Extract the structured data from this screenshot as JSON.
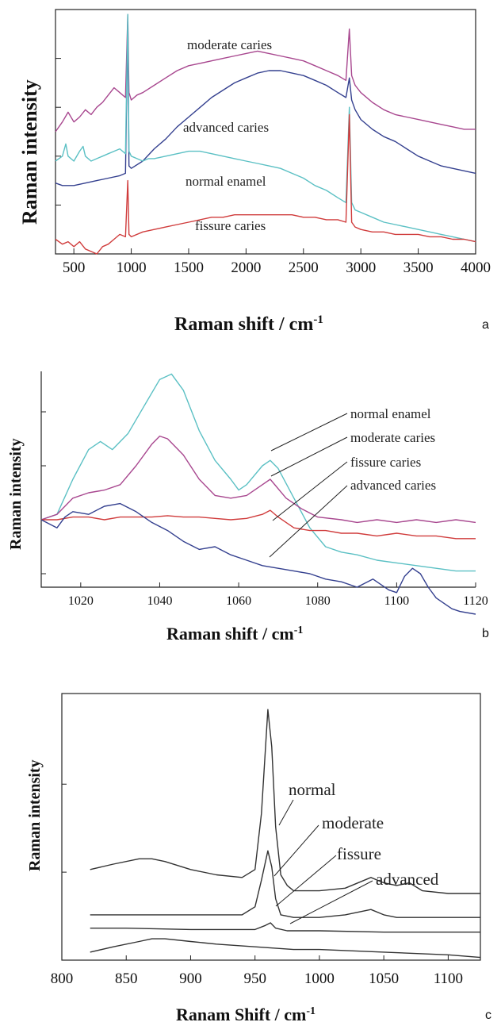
{
  "chart_data": [
    {
      "type": "line",
      "panel": "a",
      "xlabel": "Raman shift / cm",
      "xlabel_sup": "-1",
      "ylabel": "Raman intensity",
      "xlim": [
        340,
        4000
      ],
      "ylim": [
        0,
        100
      ],
      "x_ticks": [
        500,
        1000,
        1500,
        2000,
        2500,
        3000,
        3500,
        4000
      ],
      "y_ticks": [
        0,
        20,
        40,
        60,
        80,
        100
      ],
      "curve_labels": [
        "moderate caries",
        "advanced caries",
        "normal enamel",
        "fissure caries"
      ],
      "series": [
        {
          "name": "moderate caries",
          "color": "#a8478f",
          "x": [
            340,
            400,
            450,
            500,
            550,
            600,
            650,
            700,
            750,
            800,
            850,
            900,
            950,
            970,
            980,
            1000,
            1050,
            1100,
            1200,
            1300,
            1400,
            1500,
            1600,
            1700,
            1800,
            1900,
            2000,
            2100,
            2200,
            2300,
            2400,
            2500,
            2600,
            2700,
            2800,
            2870,
            2900,
            2920,
            2950,
            3000,
            3100,
            3200,
            3300,
            3400,
            3500,
            3600,
            3700,
            3800,
            3900,
            4000
          ],
          "y": [
            50,
            54,
            58,
            54,
            56,
            59,
            57,
            60,
            62,
            65,
            68,
            66,
            64,
            98,
            66,
            63,
            65,
            66,
            69,
            72,
            75,
            77,
            78,
            79,
            80,
            81,
            82,
            83,
            82,
            81,
            80,
            79,
            77,
            75,
            73,
            71,
            92,
            73,
            69,
            66,
            62,
            59,
            57,
            56,
            55,
            54,
            53,
            52,
            51,
            51
          ]
        },
        {
          "name": "advanced caries",
          "color": "#34408f",
          "x": [
            340,
            400,
            500,
            600,
            700,
            800,
            900,
            950,
            970,
            980,
            1000,
            1100,
            1200,
            1300,
            1400,
            1500,
            1600,
            1700,
            1800,
            1900,
            2000,
            2100,
            2200,
            2300,
            2400,
            2500,
            2600,
            2700,
            2800,
            2870,
            2900,
            2920,
            2950,
            3000,
            3100,
            3200,
            3300,
            3400,
            3500,
            3600,
            3700,
            3800,
            3900,
            4000
          ],
          "y": [
            29,
            28,
            28,
            29,
            30,
            31,
            32,
            33,
            95,
            36,
            35,
            38,
            43,
            47,
            52,
            56,
            60,
            64,
            67,
            70,
            72,
            74,
            75,
            75,
            74,
            73,
            71,
            69,
            66,
            64,
            72,
            63,
            59,
            55,
            51,
            48,
            46,
            43,
            40,
            38,
            36,
            35,
            34,
            33
          ]
        },
        {
          "name": "normal enamel",
          "color": "#5bc0c4",
          "x": [
            340,
            400,
            430,
            450,
            500,
            550,
            580,
            600,
            650,
            700,
            750,
            800,
            850,
            900,
            950,
            970,
            980,
            1000,
            1050,
            1100,
            1150,
            1200,
            1300,
            1400,
            1500,
            1600,
            1700,
            1800,
            1900,
            2000,
            2100,
            2200,
            2300,
            2400,
            2500,
            2600,
            2700,
            2800,
            2870,
            2900,
            2920,
            2950,
            3000,
            3100,
            3200,
            3300,
            3400,
            3500,
            3600,
            3700,
            3800,
            3900,
            4000
          ],
          "y": [
            38,
            40,
            45,
            40,
            38,
            42,
            44,
            40,
            38,
            39,
            40,
            41,
            42,
            43,
            41,
            98,
            42,
            40,
            39,
            38,
            39,
            39,
            40,
            41,
            42,
            42,
            41,
            40,
            39,
            38,
            37,
            36,
            35,
            33,
            31,
            28,
            26,
            23,
            21,
            60,
            21,
            18,
            17,
            15,
            13,
            12,
            11,
            10,
            9,
            8,
            7,
            6,
            5
          ]
        },
        {
          "name": "fissure caries",
          "color": "#d03c3c",
          "x": [
            340,
            400,
            450,
            500,
            550,
            600,
            650,
            700,
            750,
            800,
            850,
            900,
            950,
            970,
            980,
            1000,
            1100,
            1200,
            1300,
            1400,
            1500,
            1600,
            1700,
            1800,
            1900,
            2000,
            2100,
            2200,
            2300,
            2400,
            2500,
            2600,
            2700,
            2800,
            2870,
            2900,
            2920,
            2950,
            3000,
            3100,
            3200,
            3300,
            3400,
            3500,
            3600,
            3700,
            3800,
            3900,
            4000
          ],
          "y": [
            6,
            4,
            5,
            3,
            5,
            2,
            1,
            0,
            3,
            4,
            6,
            8,
            7,
            30,
            8,
            7,
            9,
            10,
            11,
            12,
            13,
            14,
            15,
            15,
            16,
            16,
            16,
            16,
            16,
            16,
            15,
            15,
            14,
            14,
            13,
            57,
            13,
            11,
            10,
            9,
            9,
            8,
            8,
            8,
            7,
            7,
            6,
            6,
            5
          ]
        }
      ]
    },
    {
      "type": "line",
      "panel": "b",
      "xlabel": "Raman shift / cm",
      "xlabel_sup": "-1",
      "ylabel": "Raman intensity",
      "xlim": [
        1010,
        1120
      ],
      "ylim": [
        -2.5,
        5.5
      ],
      "x_ticks": [
        1020,
        1040,
        1060,
        1080,
        1100,
        1120
      ],
      "y_ticks": [
        -2,
        0,
        2,
        4
      ],
      "curve_labels": [
        "normal enamel",
        "moderate caries",
        "fissure caries",
        "advanced caries"
      ],
      "series": [
        {
          "name": "normal enamel",
          "color": "#5bc0c4",
          "x": [
            1010,
            1014,
            1018,
            1022,
            1025,
            1028,
            1032,
            1036,
            1040,
            1043,
            1046,
            1050,
            1054,
            1058,
            1060,
            1062,
            1066,
            1068,
            1070,
            1074,
            1078,
            1082,
            1086,
            1090,
            1095,
            1100,
            1105,
            1110,
            1115,
            1120
          ],
          "y": [
            0,
            0.2,
            1.5,
            2.6,
            2.9,
            2.6,
            3.2,
            4.2,
            5.2,
            5.4,
            4.8,
            3.3,
            2.2,
            1.5,
            1.1,
            1.3,
            2.0,
            2.2,
            1.9,
            0.8,
            -0.3,
            -1.0,
            -1.2,
            -1.3,
            -1.5,
            -1.6,
            -1.7,
            -1.8,
            -1.9,
            -1.9
          ]
        },
        {
          "name": "moderate caries",
          "color": "#a8478f",
          "x": [
            1010,
            1014,
            1018,
            1022,
            1026,
            1030,
            1034,
            1038,
            1040,
            1042,
            1046,
            1050,
            1054,
            1058,
            1062,
            1066,
            1068,
            1072,
            1076,
            1080,
            1086,
            1090,
            1095,
            1100,
            1105,
            1110,
            1115,
            1120
          ],
          "y": [
            0,
            0.2,
            0.8,
            1.0,
            1.1,
            1.3,
            2.0,
            2.8,
            3.1,
            3.0,
            2.4,
            1.5,
            0.9,
            0.8,
            0.9,
            1.3,
            1.5,
            0.8,
            0.4,
            0.1,
            0,
            -0.1,
            0,
            -0.1,
            0,
            -0.1,
            0,
            -0.1
          ]
        },
        {
          "name": "fissure caries",
          "color": "#d03c3c",
          "x": [
            1010,
            1014,
            1018,
            1022,
            1026,
            1030,
            1034,
            1038,
            1042,
            1046,
            1050,
            1054,
            1058,
            1062,
            1066,
            1068,
            1070,
            1074,
            1078,
            1082,
            1086,
            1090,
            1095,
            1100,
            1105,
            1110,
            1115,
            1120
          ],
          "y": [
            0,
            0,
            0.1,
            0.1,
            0,
            0.1,
            0.1,
            0.1,
            0.15,
            0.1,
            0.1,
            0.05,
            0,
            0.05,
            0.2,
            0.35,
            0.1,
            -0.3,
            -0.4,
            -0.4,
            -0.5,
            -0.5,
            -0.6,
            -0.5,
            -0.6,
            -0.6,
            -0.7,
            -0.7
          ]
        },
        {
          "name": "advanced caries",
          "color": "#34408f",
          "x": [
            1010,
            1014,
            1016,
            1018,
            1022,
            1026,
            1030,
            1034,
            1038,
            1042,
            1046,
            1050,
            1054,
            1058,
            1062,
            1066,
            1070,
            1074,
            1078,
            1082,
            1086,
            1090,
            1094,
            1098,
            1100,
            1102,
            1104,
            1106,
            1108,
            1110,
            1114,
            1116,
            1120
          ],
          "y": [
            0,
            -0.3,
            0.1,
            0.3,
            0.2,
            0.5,
            0.6,
            0.3,
            -0.1,
            -0.4,
            -0.8,
            -1.1,
            -1.0,
            -1.3,
            -1.5,
            -1.7,
            -1.8,
            -1.9,
            -2.0,
            -2.2,
            -2.3,
            -2.5,
            -2.2,
            -2.6,
            -2.7,
            -2.1,
            -1.8,
            -2.0,
            -2.5,
            -2.9,
            -3.3,
            -3.4,
            -3.5
          ]
        }
      ]
    },
    {
      "type": "line",
      "panel": "c",
      "xlabel": "Ranam Shift / cm",
      "xlabel_sup": "-1",
      "ylabel": "Raman intensity",
      "xlim": [
        800,
        1125
      ],
      "ylim": [
        0,
        100
      ],
      "x_ticks": [
        800,
        850,
        900,
        950,
        1000,
        1050,
        1100
      ],
      "y_ticks": [
        0,
        33,
        66,
        100
      ],
      "curve_labels": [
        "normal",
        "moderate",
        "fissure",
        "advanced"
      ],
      "series": [
        {
          "name": "normal",
          "color": "#333333",
          "x": [
            822,
            840,
            860,
            870,
            880,
            900,
            920,
            940,
            950,
            955,
            960,
            963,
            966,
            970,
            975,
            980,
            1000,
            1020,
            1040,
            1050,
            1060,
            1070,
            1080,
            1100,
            1125
          ],
          "y": [
            34,
            36,
            38,
            38,
            37,
            34,
            32,
            31,
            34,
            55,
            94,
            80,
            50,
            32,
            28,
            26,
            26,
            27,
            31,
            29,
            28,
            29,
            26,
            25,
            25
          ]
        },
        {
          "name": "moderate",
          "color": "#333333",
          "x": [
            822,
            850,
            900,
            940,
            950,
            955,
            960,
            963,
            966,
            970,
            980,
            1000,
            1020,
            1040,
            1050,
            1060,
            1080,
            1100,
            1125
          ],
          "y": [
            17,
            17,
            17,
            17,
            20,
            30,
            41,
            35,
            23,
            17,
            16,
            16,
            17,
            19,
            17,
            16,
            16,
            16,
            16
          ]
        },
        {
          "name": "fissure",
          "color": "#333333",
          "x": [
            822,
            850,
            900,
            950,
            958,
            962,
            966,
            975,
            1000,
            1050,
            1100,
            1125
          ],
          "y": [
            12,
            12,
            11.5,
            11.5,
            13,
            14,
            12,
            11,
            11,
            10.5,
            10.5,
            10.5
          ]
        },
        {
          "name": "advanced",
          "color": "#333333",
          "x": [
            822,
            840,
            860,
            870,
            880,
            900,
            920,
            950,
            980,
            1000,
            1050,
            1100,
            1125
          ],
          "y": [
            3,
            5,
            7,
            8,
            8,
            7,
            6,
            5,
            4,
            4,
            3,
            2,
            1
          ]
        }
      ]
    }
  ]
}
